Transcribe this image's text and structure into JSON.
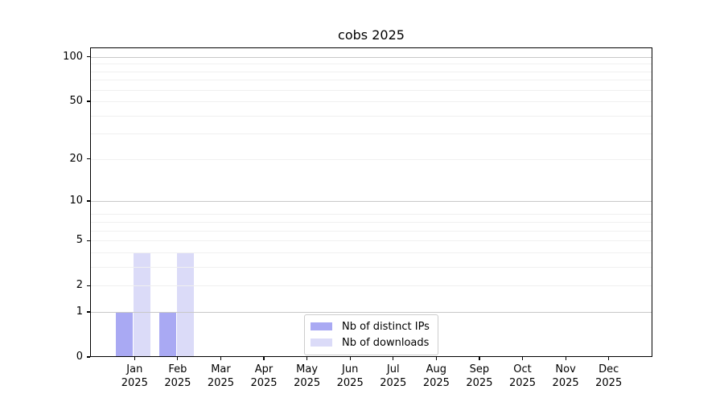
{
  "chart_data": {
    "type": "bar",
    "title": "cobs 2025",
    "x": {
      "categories": [
        "Jan",
        "Feb",
        "Mar",
        "Apr",
        "May",
        "Jun",
        "Jul",
        "Aug",
        "Sep",
        "Oct",
        "Nov",
        "Dec"
      ],
      "year_label": "2025"
    },
    "series": [
      {
        "name": "Nb of distinct IPs",
        "color": "#a9a9f3",
        "values": [
          1,
          1,
          0,
          0,
          0,
          0,
          0,
          0,
          0,
          0,
          0,
          0
        ]
      },
      {
        "name": "Nb of downloads",
        "color": "#dbdbf8",
        "values": [
          4,
          4,
          0,
          0,
          0,
          0,
          0,
          0,
          0,
          0,
          0,
          0
        ]
      }
    ],
    "y_axis": {
      "scale": "log1p",
      "tick_values": [
        0,
        1,
        2,
        5,
        10,
        20,
        50,
        100
      ],
      "major_grid_values": [
        1,
        10,
        100
      ],
      "minor_grid_values": [
        2,
        3,
        4,
        5,
        6,
        7,
        8,
        20,
        30,
        40,
        50,
        60,
        70,
        80,
        90
      ],
      "range_min": 0,
      "range_max": 110,
      "grid": true
    },
    "legend": {
      "position": "inside-bottom-center",
      "entries": [
        "Nb of distinct IPs",
        "Nb of downloads"
      ]
    }
  },
  "colors": {
    "background": "#ffffff",
    "spine": "#000000",
    "major_grid": "#c8c8c8",
    "minor_grid": "#f0f0f0",
    "text": "#000000",
    "legend_border": "#cccccc"
  }
}
